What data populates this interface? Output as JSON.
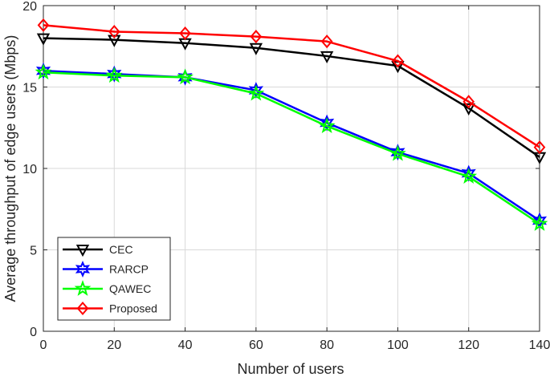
{
  "chart_data": {
    "type": "line",
    "title": "",
    "xlabel": "Number of users",
    "ylabel": "Average throughput of edge users (Mbps)",
    "xlim": [
      0,
      140
    ],
    "ylim": [
      0,
      20
    ],
    "xticks": [
      0,
      20,
      40,
      60,
      80,
      100,
      120,
      140
    ],
    "yticks": [
      0,
      5,
      10,
      15,
      20
    ],
    "grid": true,
    "legend_position": "bottom-left",
    "x": [
      0,
      20,
      40,
      60,
      80,
      100,
      120,
      140
    ],
    "series": [
      {
        "name": "CEC",
        "color": "#000000",
        "marker": "triangle-down",
        "values": [
          18.0,
          17.9,
          17.7,
          17.4,
          16.9,
          16.3,
          13.7,
          10.7
        ]
      },
      {
        "name": "RARCP",
        "color": "#0000ff",
        "marker": "hexagram",
        "values": [
          16.0,
          15.8,
          15.6,
          14.8,
          12.8,
          11.0,
          9.7,
          6.8
        ]
      },
      {
        "name": "QAWEC",
        "color": "#00ff00",
        "marker": "pentagram",
        "values": [
          15.9,
          15.7,
          15.6,
          14.6,
          12.6,
          10.9,
          9.5,
          6.6
        ]
      },
      {
        "name": "Proposed",
        "color": "#ff0000",
        "marker": "diamond",
        "values": [
          18.8,
          18.4,
          18.3,
          18.1,
          17.8,
          16.6,
          14.1,
          11.3
        ]
      }
    ]
  }
}
